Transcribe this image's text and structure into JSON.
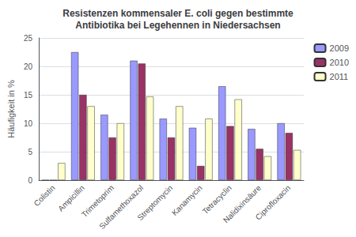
{
  "chart_data": {
    "type": "bar",
    "title": "Resistenzen kommensaler E. coli gegen bestimmte\nAntibiotika bei Legehennen in Niedersachsen",
    "y_label": "Häufigkeit in %",
    "categories": [
      "Colistin",
      "Ampicillin",
      "Trimetoprim",
      "Sulfamethoxazol",
      "Streptomycin",
      "Kanamycin",
      "Tetracyclin",
      "Nalidixinsäure",
      "Ciprofloxacin"
    ],
    "series": [
      {
        "name": "2009",
        "color": "#9999FF",
        "values": [
          0,
          22.5,
          11.5,
          21.0,
          10.8,
          9.2,
          16.5,
          9.0,
          10.0
        ]
      },
      {
        "name": "2010",
        "color": "#993366",
        "values": [
          0,
          15.0,
          7.5,
          20.5,
          7.5,
          2.5,
          9.5,
          5.5,
          8.3
        ]
      },
      {
        "name": "2011",
        "color": "#FFFFCC",
        "values": [
          3.0,
          13.0,
          10.0,
          14.7,
          13.0,
          10.8,
          14.2,
          4.2,
          5.3
        ]
      }
    ],
    "ylim": [
      0,
      25
    ],
    "yticks": [
      0,
      5,
      10,
      15,
      20,
      25
    ],
    "grid": true,
    "legend": "upper right"
  }
}
